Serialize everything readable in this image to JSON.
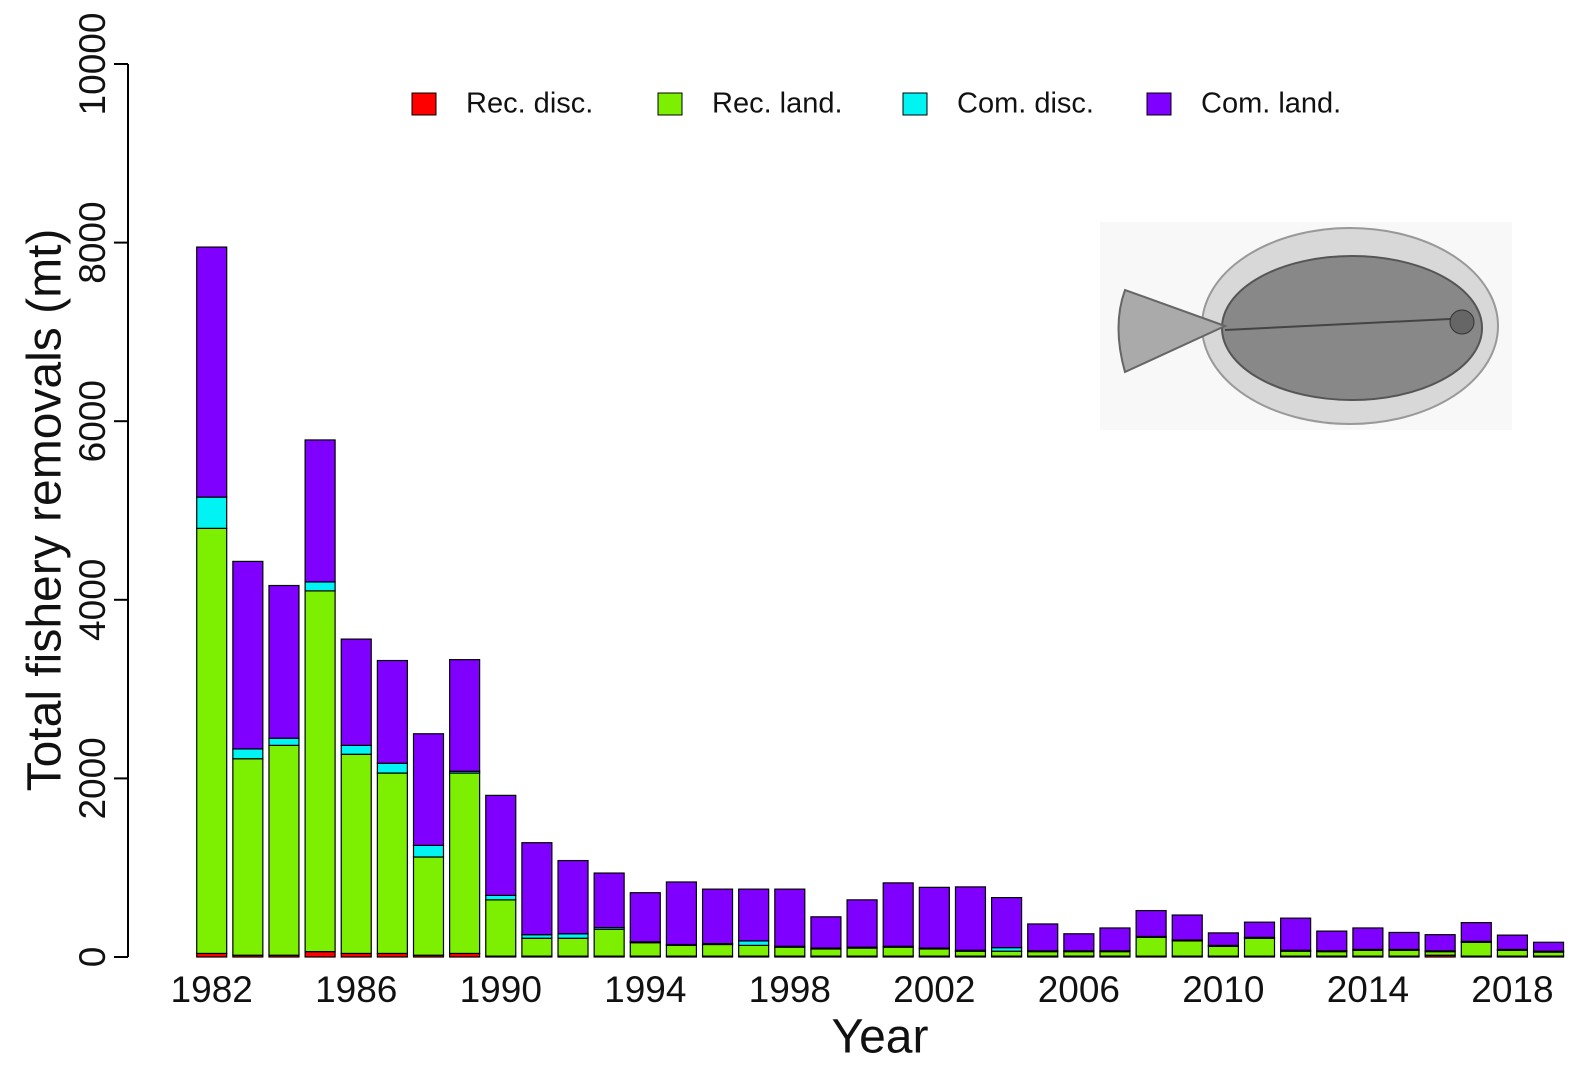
{
  "chart_data": {
    "type": "stacked_bar",
    "x_label": "Year",
    "y_label": "Total fishery removals (mt)",
    "x": [
      1982,
      1983,
      1984,
      1985,
      1986,
      1987,
      1988,
      1989,
      1990,
      1991,
      1992,
      1993,
      1994,
      1995,
      1996,
      1997,
      1998,
      1999,
      2000,
      2001,
      2002,
      2003,
      2004,
      2005,
      2006,
      2007,
      2008,
      2009,
      2010,
      2011,
      2012,
      2013,
      2014,
      2015,
      2016,
      2017,
      2018,
      2019
    ],
    "xlim": [
      1979.6,
      2019.4
    ],
    "xticks": [
      1982,
      1986,
      1990,
      1994,
      1998,
      2002,
      2006,
      2010,
      2014,
      2018
    ],
    "ylim": [
      0,
      10000
    ],
    "yticks": [
      0,
      2000,
      4000,
      6000,
      8000,
      10000
    ],
    "legend": "top",
    "series": [
      {
        "name": "Rec. disc.",
        "color": "#ff0000",
        "values": [
          40,
          20,
          20,
          60,
          40,
          40,
          20,
          40,
          10,
          10,
          10,
          10,
          10,
          10,
          10,
          10,
          10,
          10,
          10,
          10,
          10,
          10,
          10,
          10,
          10,
          10,
          10,
          10,
          10,
          10,
          10,
          10,
          10,
          10,
          20,
          10,
          10,
          10
        ]
      },
      {
        "name": "Rec. land.",
        "color": "#7cf000",
        "values": [
          4760,
          2200,
          2350,
          4040,
          2230,
          2020,
          1100,
          2020,
          630,
          200,
          200,
          300,
          150,
          120,
          130,
          120,
          100,
          80,
          90,
          100,
          80,
          55,
          55,
          50,
          50,
          50,
          210,
          170,
          110,
          200,
          55,
          50,
          65,
          65,
          40,
          155,
          65,
          45
        ]
      },
      {
        "name": "Com. disc.",
        "color": "#00f4f4",
        "values": [
          350,
          110,
          80,
          100,
          100,
          110,
          130,
          20,
          50,
          40,
          50,
          20,
          10,
          10,
          10,
          50,
          10,
          10,
          10,
          10,
          10,
          10,
          40,
          10,
          10,
          10,
          10,
          10,
          10,
          10,
          10,
          10,
          10,
          10,
          10,
          10,
          10,
          10
        ]
      },
      {
        "name": "Com. land.",
        "color": "#8000ff",
        "values": [
          2800,
          2100,
          1710,
          1590,
          1190,
          1150,
          1250,
          1250,
          1120,
          1030,
          820,
          610,
          550,
          700,
          610,
          580,
          640,
          350,
          530,
          710,
          680,
          710,
          560,
          300,
          190,
          255,
          290,
          280,
          140,
          170,
          360,
          220,
          240,
          190,
          180,
          210,
          160,
          100
        ]
      }
    ]
  }
}
